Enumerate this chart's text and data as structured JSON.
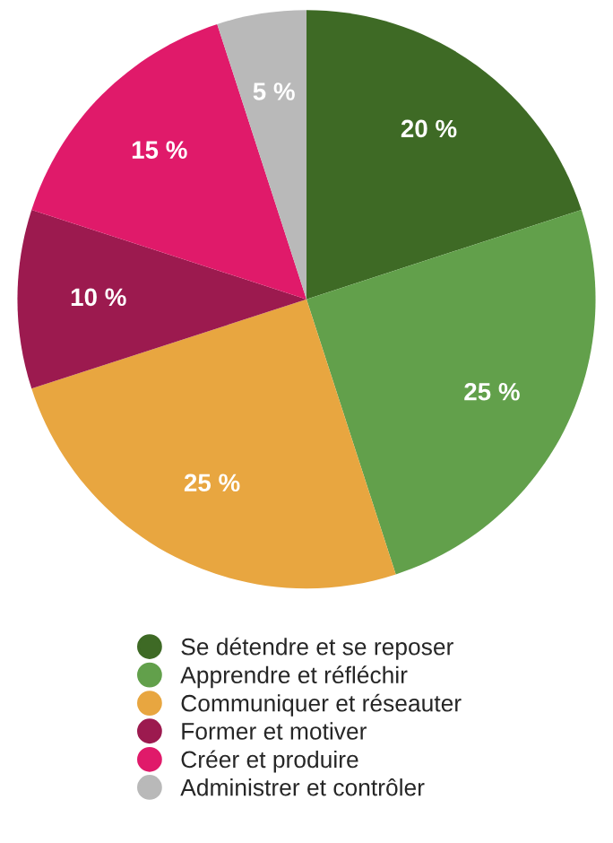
{
  "chart_data": {
    "type": "pie",
    "categories": [
      "Se détendre et se reposer",
      "Apprendre et réfléchir",
      "Communiquer et réseauter",
      "Former et motiver",
      "Créer et produire",
      "Administrer et contrôler"
    ],
    "values": [
      20,
      25,
      25,
      10,
      15,
      5
    ],
    "value_labels": [
      "20 %",
      "25 %",
      "25 %",
      "10 %",
      "15 %",
      "5 %"
    ],
    "colors": [
      "#3e6a25",
      "#62a04b",
      "#e8a640",
      "#9c1a4f",
      "#e01a6a",
      "#b9b9b9"
    ],
    "legend": "bottom"
  }
}
